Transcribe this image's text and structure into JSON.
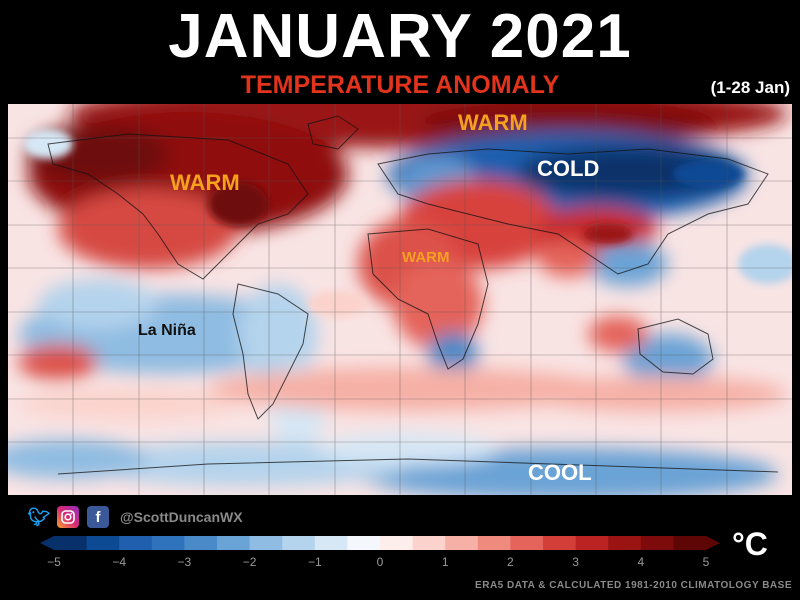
{
  "header": {
    "title": "JANUARY 2021",
    "subtitle": "TEMPERATURE ANOMALY",
    "date_range": "(1-28 Jan)"
  },
  "map": {
    "labels": {
      "warm_arctic": "WARM",
      "warm_north_america": "WARM",
      "warm_africa": "WARM",
      "cold_asia": "COLD",
      "cool_antarctic": "COOL",
      "la_nina": "La Niña"
    }
  },
  "footer": {
    "handle": "@ScottDuncanWX",
    "unit": "°C",
    "source": "ERA5 DATA & CALCULATED 1981-2010 CLIMATOLOGY BASE"
  },
  "colorbar": {
    "ticks": [
      "−5",
      "−4",
      "−3",
      "−2",
      "−1",
      "0",
      "1",
      "2",
      "3",
      "4",
      "5"
    ],
    "colors": [
      "#08306b",
      "#0d4a94",
      "#1f5fae",
      "#2f73bd",
      "#4a8ac8",
      "#6aa3d6",
      "#8fbce2",
      "#b4d3ec",
      "#d6e7f5",
      "#f4f8fc",
      "#fdeeec",
      "#fbd3cc",
      "#f6b0a6",
      "#ef8a7e",
      "#e4635a",
      "#d43e38",
      "#bb2323",
      "#9b1414",
      "#7d0b0b",
      "#5e0606"
    ]
  },
  "social": {
    "twitter_icon": "twitter-icon",
    "instagram_icon": "instagram-icon",
    "facebook_icon": "facebook-icon"
  }
}
